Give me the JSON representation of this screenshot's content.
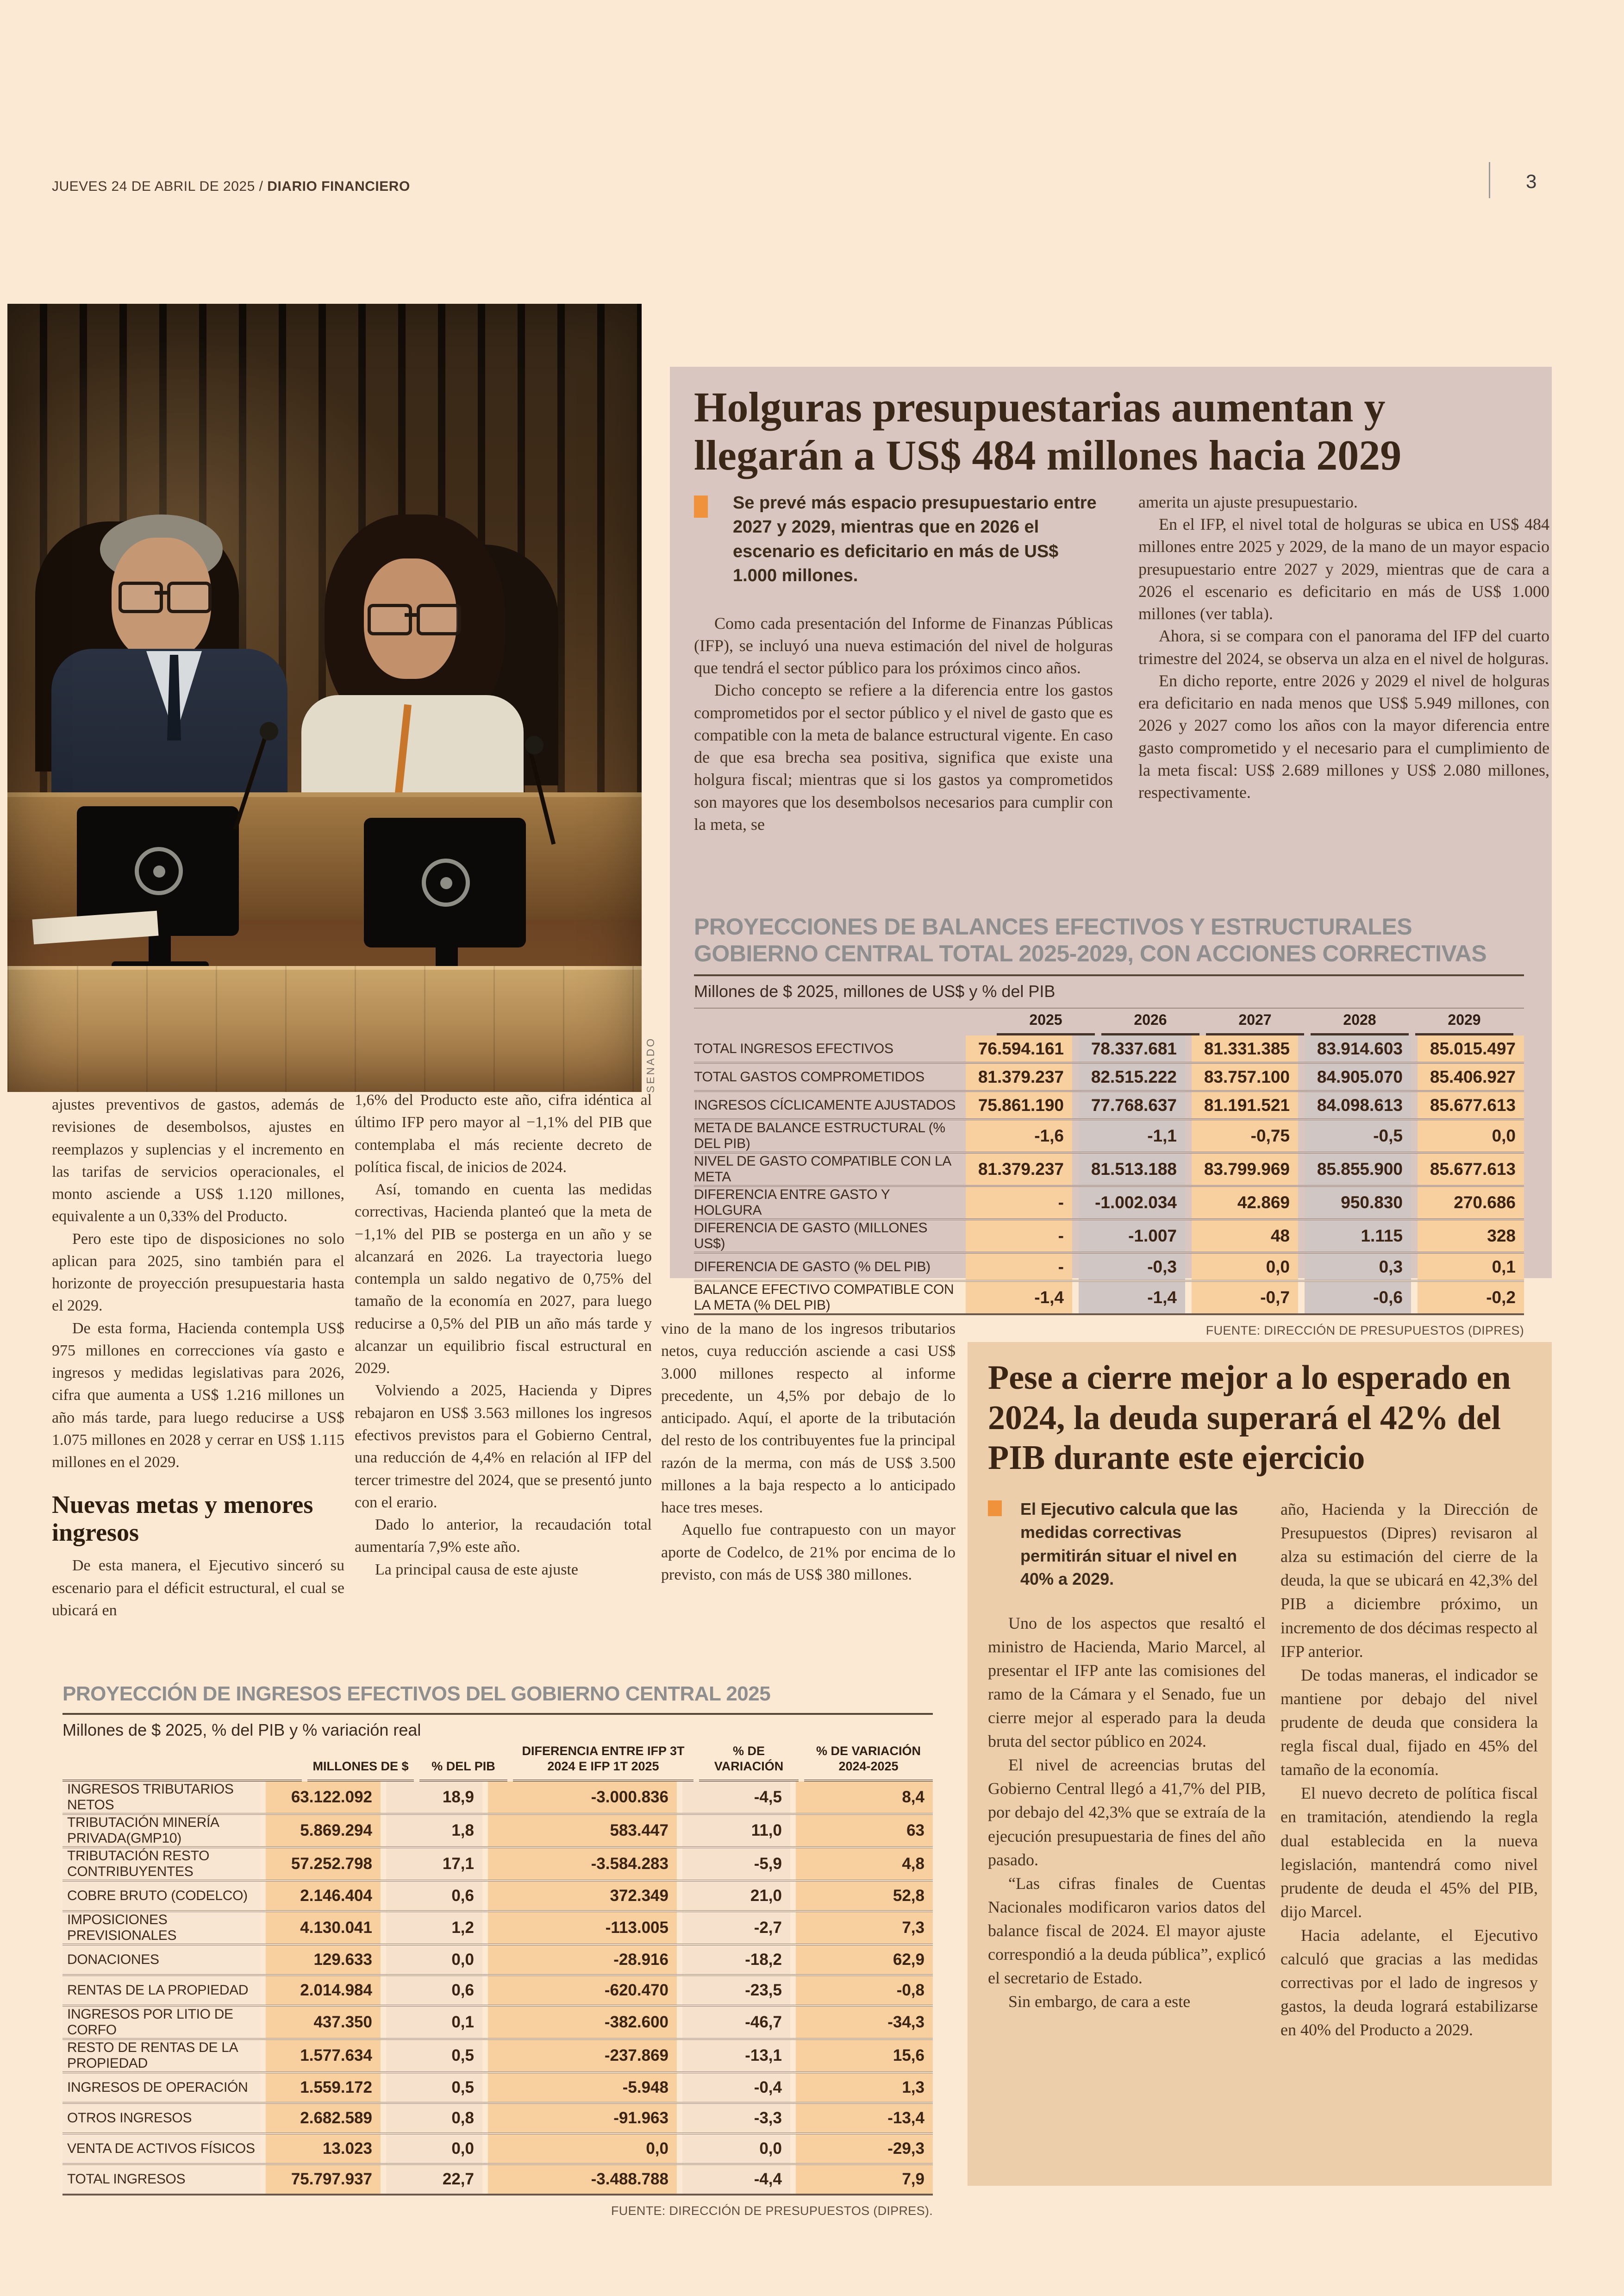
{
  "page": {
    "date_line": "JUEVES 24 DE ABRIL DE 2025 / ",
    "paper_name": "DIARIO FINANCIERO",
    "page_number": "3",
    "photo_credit": "SENADO"
  },
  "colors": {
    "page_background": "#fbe9d4",
    "article1_panel": "#d9c6c0",
    "article2_panel": "#ecceab",
    "bullet_orange": "#f0923c",
    "table_highlight_orange": "#f8cf9e",
    "table_title_gray": "#8e8e8e"
  },
  "article1": {
    "headline": "Holguras presupuestarias aumentan y llegarán a US$ 484 millones hacia 2029",
    "bullet": "Se prevé más espacio presupuestario entre 2027 y 2029, mientras que en 2026 el escenario es deficitario en más de US$ 1.000 millones.",
    "col1_paragraphs": [
      "Como cada presentación del Informe de Finanzas Públicas (IFP), se incluyó una nueva estimación del nivel de holguras que tendrá el sector público para los próximos cinco años.",
      "Dicho concepto se refiere a la diferencia entre los gastos comprometidos por el sector público y el nivel de gasto que es compatible con la meta de balance estructural vigente. En caso de que esa brecha sea positiva, significa que existe una holgura fiscal; mientras que si los gastos ya comprometidos son mayores que los desembolsos necesarios para cumplir con la meta, se"
    ],
    "col2_paragraphs": [
      "amerita un ajuste presupuestario.",
      "En el IFP, el nivel total de holguras se ubica en US$ 484 millones entre 2025 y 2029, de la mano de un mayor espacio presupuestario entre 2027 y 2029, mientras que de cara a 2026 el escenario es deficitario en más de US$ 1.000 millones (ver tabla).",
      "Ahora, si se compara con el panorama del IFP del cuarto trimestre del 2024, se observa un alza en el nivel de holguras.",
      "En dicho reporte, entre 2026 y 2029 el nivel de holguras era deficitario en nada menos que US$ 5.949 millones, con 2026 y 2027 como los años con la mayor diferencia entre gasto comprometido y el necesario para el cumplimiento de la meta fiscal: US$ 2.689 millones y US$ 2.080 millones, respectivamente."
    ]
  },
  "table1": {
    "title": "PROYECCIONES DE BALANCES EFECTIVOS Y ESTRUCTURALES GOBIERNO CENTRAL TOTAL 2025-2029, CON ACCIONES CORRECTIVAS",
    "subtitle": "Millones de $ 2025, millones de US$ y % del PIB",
    "years": [
      "2025",
      "2026",
      "2027",
      "2028",
      "2029"
    ],
    "rows": [
      {
        "label": "TOTAL INGRESOS EFECTIVOS",
        "values": [
          "76.594.161",
          "78.337.681",
          "81.331.385",
          "83.914.603",
          "85.015.497"
        ]
      },
      {
        "label": "TOTAL GASTOS COMPROMETIDOS",
        "values": [
          "81.379.237",
          "82.515.222",
          "83.757.100",
          "84.905.070",
          "85.406.927"
        ]
      },
      {
        "label": "INGRESOS CÍCLICAMENTE AJUSTADOS",
        "values": [
          "75.861.190",
          "77.768.637",
          "81.191.521",
          "84.098.613",
          "85.677.613"
        ]
      },
      {
        "label": "META DE BALANCE ESTRUCTURAL (% DEL PIB)",
        "values": [
          "-1,6",
          "-1,1",
          "-0,75",
          "-0,5",
          "0,0"
        ]
      },
      {
        "label": "NIVEL DE GASTO COMPATIBLE CON LA META",
        "values": [
          "81.379.237",
          "81.513.188",
          "83.799.969",
          "85.855.900",
          "85.677.613"
        ]
      },
      {
        "label": "DIFERENCIA ENTRE GASTO Y HOLGURA",
        "values": [
          "-",
          "-1.002.034",
          "42.869",
          "950.830",
          "270.686"
        ]
      },
      {
        "label": "DIFERENCIA DE GASTO (MILLONES US$)",
        "values": [
          "-",
          "-1.007",
          "48",
          "1.115",
          "328"
        ]
      },
      {
        "label": "DIFERENCIA DE GASTO (% DEL PIB)",
        "values": [
          "-",
          "-0,3",
          "0,0",
          "0,3",
          "0,1"
        ]
      },
      {
        "label": "BALANCE EFECTIVO COMPATIBLE CON LA META (% DEL PIB)",
        "values": [
          "-1,4",
          "-1,4",
          "-0,7",
          "-0,6",
          "-0,2"
        ]
      }
    ],
    "source": "FUENTE: DIRECCIÓN DE PRESUPUESTOS (DIPRES)"
  },
  "main_article": {
    "col1_paragraphs": [
      "ajustes preventivos de gastos, además de revisiones de desembolsos, ajustes en reemplazos y suplencias y el incremento en las tarifas de servicios operacionales, el monto asciende a US$ 1.120 millones, equivalente a un 0,33% del Producto.",
      "Pero este tipo de disposiciones no solo aplican para 2025, sino también para el horizonte de proyección presupuestaria hasta el 2029.",
      "De esta forma, Hacienda contempla US$ 975 millones en correcciones vía gasto e ingresos y medidas legislativas para 2026, cifra que aumenta a US$ 1.216 millones un año más tarde, para luego reducirse a US$ 1.075 millones en 2028 y cerrar en US$ 1.115 millones en el 2029."
    ],
    "subhead": "Nuevas metas y menores ingresos",
    "col1_after_subhead": "De esta manera, el Ejecutivo sinceró su escenario para el déficit estructural, el cual se ubicará en",
    "col2_paragraphs": [
      "1,6% del Producto este año, cifra idéntica al último IFP pero mayor al −1,1% del PIB que contemplaba el más reciente decreto de política fiscal, de inicios de 2024.",
      "Así, tomando en cuenta las medidas correctivas, Hacienda planteó que la meta de −1,1% del PIB se posterga en un año y se alcanzará en 2026. La trayectoria luego contempla un saldo negativo de 0,75% del tamaño de la economía en 2027, para luego reducirse a 0,5% del PIB un año más tarde y alcanzar un equilibrio fiscal estructural en 2029.",
      "Volviendo a 2025, Hacienda y Dipres rebajaron en US$ 3.563 millones los ingresos efectivos previstos para el Gobierno Central, una reducción de 4,4% en relación al IFP del tercer trimestre del 2024, que se presentó junto con el erario.",
      "Dado lo anterior, la recaudación total aumentaría 7,9% este año.",
      "La principal causa de este ajuste"
    ],
    "col3_paragraphs": [
      "vino de la mano de los ingresos tributarios netos, cuya reducción asciende a casi US$ 3.000 millones respecto al informe precedente, un 4,5% por debajo de lo anticipado. Aquí, el aporte de la tributación del resto de los contribuyentes fue la principal razón de la merma, con más de US$ 3.500 millones a la baja respecto a lo anticipado hace tres meses.",
      "Aquello fue contrapuesto con un mayor aporte de Codelco, de 21% por encima de lo previsto, con más de US$ 380 millones."
    ]
  },
  "table2": {
    "title": "PROYECCIÓN DE INGRESOS EFECTIVOS DEL GOBIERNO CENTRAL 2025",
    "subtitle": "Millones de $ 2025, % del PIB y % variación real",
    "headers": [
      "MILLONES DE $",
      "% DEL PIB",
      "DIFERENCIA ENTRE IFP 3T\n2024 E IFP 1T 2025",
      "% DE\nVARIACIÓN",
      "% DE VARIACIÓN\n2024-2025"
    ],
    "rows": [
      {
        "label": "INGRESOS TRIBUTARIOS NETOS",
        "values": [
          "63.122.092",
          "18,9",
          "-3.000.836",
          "-4,5",
          "8,4"
        ]
      },
      {
        "label": "TRIBUTACIÓN MINERÍA PRIVADA(GMP10)",
        "values": [
          "5.869.294",
          "1,8",
          "583.447",
          "11,0",
          "63"
        ]
      },
      {
        "label": "TRIBUTACIÓN RESTO CONTRIBUYENTES",
        "values": [
          "57.252.798",
          "17,1",
          "-3.584.283",
          "-5,9",
          "4,8"
        ]
      },
      {
        "label": "COBRE BRUTO (CODELCO)",
        "values": [
          "2.146.404",
          "0,6",
          "372.349",
          "21,0",
          "52,8"
        ]
      },
      {
        "label": "IMPOSICIONES PREVISIONALES",
        "values": [
          "4.130.041",
          "1,2",
          "-113.005",
          "-2,7",
          "7,3"
        ]
      },
      {
        "label": "DONACIONES",
        "values": [
          "129.633",
          "0,0",
          "-28.916",
          "-18,2",
          "62,9"
        ]
      },
      {
        "label": "RENTAS DE LA PROPIEDAD",
        "values": [
          "2.014.984",
          "0,6",
          "-620.470",
          "-23,5",
          "-0,8"
        ]
      },
      {
        "label": "INGRESOS POR LITIO DE CORFO",
        "values": [
          "437.350",
          "0,1",
          "-382.600",
          "-46,7",
          "-34,3"
        ]
      },
      {
        "label": "RESTO DE RENTAS DE LA PROPIEDAD",
        "values": [
          "1.577.634",
          "0,5",
          "-237.869",
          "-13,1",
          "15,6"
        ]
      },
      {
        "label": "INGRESOS DE OPERACIÓN",
        "values": [
          "1.559.172",
          "0,5",
          "-5.948",
          "-0,4",
          "1,3"
        ]
      },
      {
        "label": "OTROS INGRESOS",
        "values": [
          "2.682.589",
          "0,8",
          "-91.963",
          "-3,3",
          "-13,4"
        ]
      },
      {
        "label": "VENTA DE ACTIVOS FÍSICOS",
        "values": [
          "13.023",
          "0,0",
          "0,0",
          "0,0",
          "-29,3"
        ]
      },
      {
        "label": "TOTAL INGRESOS",
        "values": [
          "75.797.937",
          "22,7",
          "-3.488.788",
          "-4,4",
          "7,9"
        ]
      }
    ],
    "source": "FUENTE: DIRECCIÓN DE PRESUPUESTOS (DIPRES)."
  },
  "article2": {
    "headline": "Pese a cierre mejor a lo esperado en 2024, la deuda superará el 42% del PIB durante este ejercicio",
    "bullet": "El Ejecutivo calcula que las medidas correctivas permitirán situar el nivel en 40% a 2029.",
    "col1_paragraphs": [
      "Uno de los aspectos que resaltó el ministro de Hacienda, Mario Marcel, al presentar el IFP ante las comisiones del ramo de la Cámara y el Senado, fue un cierre mejor al esperado para la deuda bruta del sector público en 2024.",
      "El nivel de acreencias brutas del Gobierno Central llegó a 41,7% del PIB, por debajo del 42,3% que se extraía de la ejecución presupuestaria de fines del año pasado.",
      "“Las cifras finales de Cuentas Nacionales modificaron varios datos del balance fiscal de 2024. El mayor ajuste correspondió a la deuda pública”, explicó el secretario de Estado.",
      "Sin embargo, de cara a este"
    ],
    "col2_paragraphs": [
      "año, Hacienda y la Dirección de Presupuestos (Dipres) revisaron al alza su estimación del cierre de la deuda, la que se ubicará en 42,3% del PIB a diciembre próximo, un incremento de dos décimas respecto al IFP anterior.",
      "De todas maneras, el indicador se mantiene por debajo del nivel prudente de deuda que considera la regla fiscal dual, fijado en 45% del tamaño de la economía.",
      "El nuevo decreto de política fiscal en tramitación, atendiendo la regla dual establecida en la nueva legislación, mantendrá como nivel prudente de deuda el 45% del PIB, dijo Marcel.",
      "Hacia adelante, el Ejecutivo calculó que gracias a las medidas correctivas por el lado de ingresos y gastos, la deuda logrará estabilizarse en 40% del Producto a 2029."
    ]
  }
}
